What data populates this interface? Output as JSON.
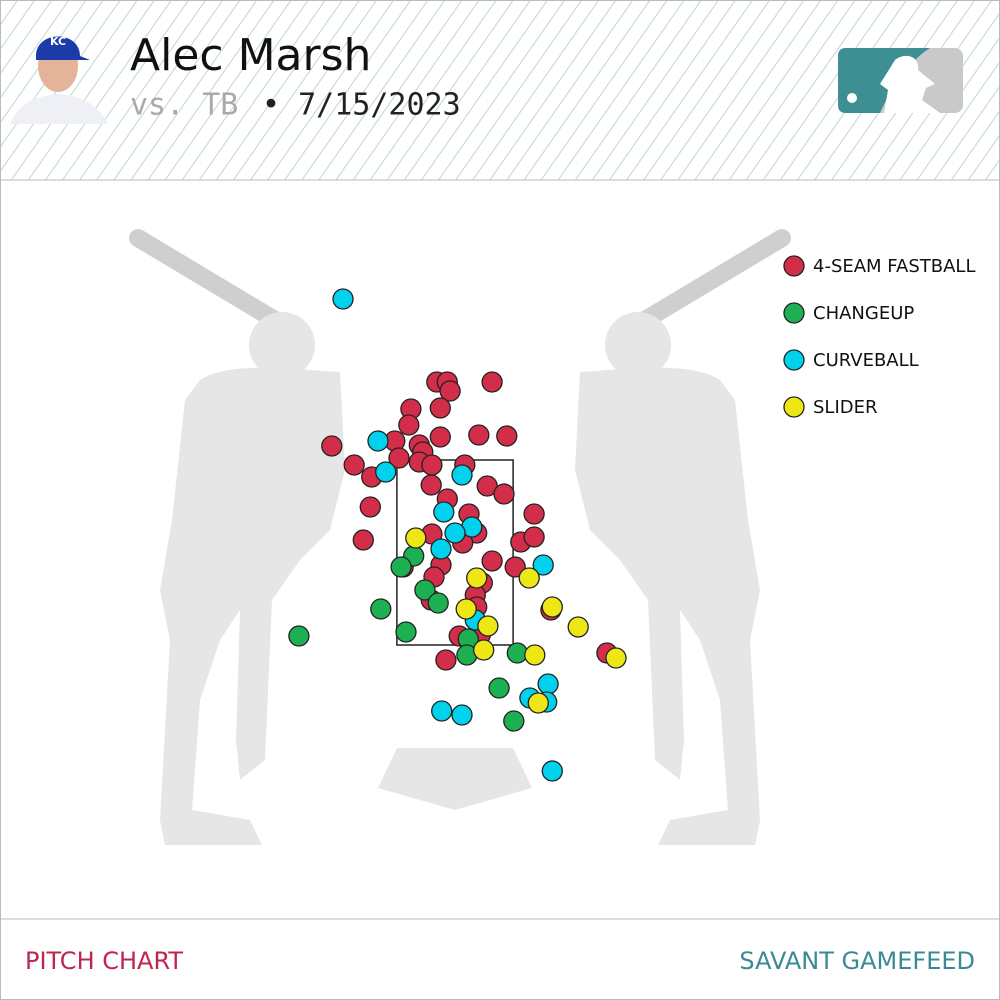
{
  "header": {
    "title": "Alec Marsh",
    "opponent": "vs. TB",
    "date": "• 7/15/2023"
  },
  "chart_data": {
    "type": "scatter",
    "legend": "upper right",
    "strike_zone": {
      "left": -0.83,
      "right": 0.83,
      "bottom": 1.55,
      "top": 3.4
    },
    "series": [
      {
        "name": "4-SEAM FASTBALL",
        "color": "#d22d49",
        "x": [
          -0.26,
          -0.11,
          -0.07,
          0.53,
          -0.63,
          -0.21,
          -0.66,
          -1.76,
          -0.86,
          -0.51,
          -0.46,
          -0.21,
          0.34,
          0.74,
          -0.8,
          -0.51,
          -0.33,
          0.14,
          -1.44,
          -1.19,
          -0.34,
          0.46,
          0.7,
          -0.11,
          -1.21,
          1.13,
          0.2,
          -0.33,
          0.31,
          0.11,
          0.94,
          1.13,
          -1.31,
          0.53,
          -0.2,
          -0.74,
          -0.3,
          0.86,
          0.39,
          0.29,
          0.31,
          -0.34,
          0.06,
          0.36,
          -0.13,
          1.37,
          2.17
        ],
        "y": [
          4.18,
          4.18,
          4.09,
          4.18,
          3.91,
          3.92,
          3.75,
          3.54,
          3.59,
          3.55,
          3.48,
          3.63,
          3.65,
          3.64,
          3.42,
          3.38,
          3.35,
          3.35,
          3.35,
          3.23,
          3.15,
          3.14,
          3.06,
          3.01,
          2.93,
          2.86,
          2.86,
          2.66,
          2.67,
          2.57,
          2.58,
          2.63,
          2.6,
          2.39,
          2.35,
          2.33,
          2.23,
          2.33,
          2.17,
          2.05,
          1.93,
          2.0,
          1.64,
          1.65,
          1.4,
          1.9,
          1.47
        ]
      },
      {
        "name": "CHANGEUP",
        "color": "#1db053",
        "x": [
          -2.23,
          -1.06,
          -0.7,
          -0.59,
          -0.77,
          -0.43,
          -0.24,
          0.19,
          0.17,
          0.89,
          0.63,
          0.84
        ],
        "y": [
          1.64,
          1.91,
          1.68,
          2.44,
          2.33,
          2.1,
          1.97,
          1.61,
          1.45,
          1.47,
          1.12,
          0.79
        ]
      },
      {
        "name": "CURVEBALL",
        "color": "#00d1ed",
        "x": [
          -1.6,
          -1.1,
          -0.99,
          0.1,
          -0.16,
          0.24,
          0.0,
          -0.2,
          1.26,
          0.29,
          1.33,
          1.07,
          1.31,
          -0.19,
          0.1,
          1.39
        ],
        "y": [
          5.01,
          3.59,
          3.28,
          3.25,
          2.88,
          2.73,
          2.67,
          2.51,
          2.35,
          1.8,
          1.16,
          1.02,
          0.98,
          0.89,
          0.85,
          0.29
        ]
      },
      {
        "name": "SLIDER",
        "color": "#eee716",
        "x": [
          -0.56,
          0.31,
          1.06,
          0.16,
          1.39,
          1.76,
          0.47,
          0.41,
          1.14,
          2.3,
          1.19
        ],
        "y": [
          2.62,
          2.22,
          2.22,
          1.91,
          1.93,
          1.73,
          1.74,
          1.5,
          1.45,
          1.42,
          0.97
        ]
      }
    ]
  },
  "footer": {
    "left": "PITCH CHART",
    "right": "SAVANT GAMEFEED"
  }
}
